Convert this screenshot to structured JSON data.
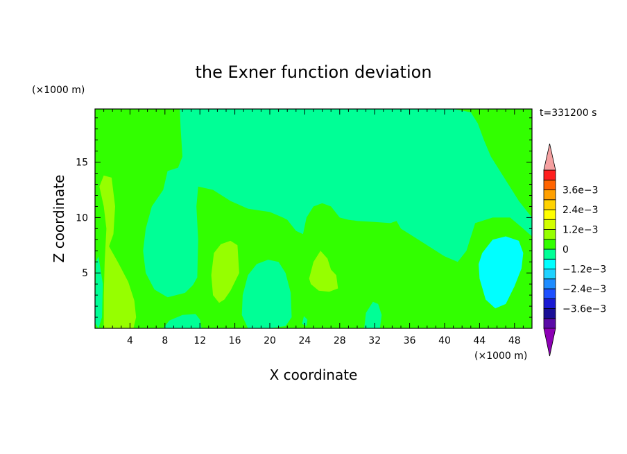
{
  "chart_data": {
    "type": "heatmap",
    "title": "the Exner function deviation",
    "xlabel": "X coordinate",
    "ylabel": "Z coordinate",
    "x_unit": "(×1000 m)",
    "y_unit": "(×1000 m)",
    "time_label": "t=331200 s",
    "xlim": [
      0,
      50
    ],
    "ylim": [
      0,
      19.8
    ],
    "x_ticks": [
      4,
      8,
      12,
      16,
      20,
      24,
      28,
      32,
      36,
      40,
      44,
      48
    ],
    "x_tick_labels": [
      "4",
      "8",
      "12",
      "16",
      "20",
      "24",
      "28",
      "32",
      "36",
      "40",
      "44",
      "48"
    ],
    "y_ticks": [
      5,
      10,
      15
    ],
    "y_tick_labels": [
      "5",
      "10",
      "15"
    ],
    "colorbar": {
      "levels": [
        -0.0042,
        -0.0036,
        -0.003,
        -0.0024,
        -0.0018,
        -0.0012,
        -0.0006,
        0,
        0.0006,
        0.0012,
        0.0018,
        0.0024,
        0.003,
        0.0036,
        0.0042
      ],
      "tick_labels": [
        "3.6e−3",
        "2.4e−3",
        "1.2e−3",
        "0",
        "−1.2e−3",
        "−2.4e−3",
        "−3.6e−3"
      ],
      "colors_bottom_to_top": [
        "#5a0aa6",
        "#1a0f96",
        "#1a1ad2",
        "#1e50ff",
        "#1e8cff",
        "#1ed2ff",
        "#00ffff",
        "#00ff96",
        "#32ff00",
        "#96ff00",
        "#d2ff00",
        "#ffff00",
        "#ffd200",
        "#ffa000",
        "#ff6400",
        "#ff1e1e"
      ],
      "under_color": "#8c00b4",
      "over_color": "#f5a0a0"
    },
    "regions": [
      {
        "level": "0 to 6e-4",
        "color": "#32ff00",
        "polygon": [
          [
            0,
            0
          ],
          [
            50,
            0
          ],
          [
            50,
            19.8
          ],
          [
            0,
            19.8
          ]
        ]
      },
      {
        "level": "-6e-4 to 0",
        "color": "#00ff96",
        "polygon": [
          [
            9.7,
            19.8
          ],
          [
            9.8,
            18
          ],
          [
            10,
            15.5
          ],
          [
            9.5,
            14.5
          ],
          [
            8.3,
            14.2
          ],
          [
            7.8,
            12.5
          ],
          [
            6.5,
            11
          ],
          [
            5.8,
            9
          ],
          [
            5.5,
            7
          ],
          [
            5.8,
            5
          ],
          [
            6.8,
            3.5
          ],
          [
            8.3,
            2.8
          ],
          [
            10.3,
            3.2
          ],
          [
            11.2,
            3.9
          ],
          [
            11.7,
            4.6
          ],
          [
            11.8,
            8
          ],
          [
            11.6,
            11
          ],
          [
            11.8,
            12.8
          ],
          [
            13.5,
            12.5
          ],
          [
            14.5,
            12
          ],
          [
            15.5,
            11.5
          ],
          [
            17.5,
            10.8
          ],
          [
            20,
            10.5
          ],
          [
            21.5,
            10
          ],
          [
            22,
            9.8
          ],
          [
            23,
            8.8
          ],
          [
            23.8,
            8.5
          ],
          [
            24.2,
            10
          ],
          [
            25,
            11
          ],
          [
            26,
            11.3
          ],
          [
            27,
            11
          ],
          [
            28,
            10
          ],
          [
            29,
            9.8
          ],
          [
            30,
            9.7
          ],
          [
            32,
            9.6
          ],
          [
            33.8,
            9.5
          ],
          [
            34.5,
            9.7
          ],
          [
            35,
            9
          ],
          [
            36,
            8.5
          ],
          [
            37,
            8
          ],
          [
            38,
            7.5
          ],
          [
            39,
            7
          ],
          [
            40,
            6.5
          ],
          [
            41.5,
            6
          ],
          [
            42.5,
            7
          ],
          [
            43.5,
            9.5
          ],
          [
            45.5,
            10
          ],
          [
            47.5,
            10
          ],
          [
            49,
            9
          ],
          [
            50,
            8.3
          ],
          [
            50,
            10
          ],
          [
            48.5,
            11.5
          ],
          [
            46.5,
            14
          ],
          [
            45.3,
            15.5
          ],
          [
            44.5,
            17
          ],
          [
            43.8,
            18.5
          ],
          [
            43,
            19.5
          ],
          [
            41,
            19.8
          ]
        ]
      },
      {
        "level": "-6e-4 to 0",
        "color": "#00ff96",
        "polygon": [
          [
            16.9,
            3
          ],
          [
            17.5,
            4.8
          ],
          [
            18.5,
            5.8
          ],
          [
            19.8,
            6.2
          ],
          [
            21,
            6
          ],
          [
            21.8,
            5
          ],
          [
            22.4,
            3.2
          ],
          [
            22.5,
            1
          ],
          [
            21.8,
            0.2
          ],
          [
            20,
            0
          ],
          [
            17.5,
            0
          ],
          [
            16.8,
            1.2
          ]
        ]
      },
      {
        "level": "-6e-4 to 0",
        "color": "#00ff96",
        "polygon": [
          [
            7.8,
            0
          ],
          [
            8.5,
            0.7
          ],
          [
            10,
            1.2
          ],
          [
            11.5,
            1.3
          ],
          [
            12,
            0.8
          ],
          [
            12.2,
            0
          ]
        ]
      },
      {
        "level": "-6e-4 to 0",
        "color": "#00ff96",
        "polygon": [
          [
            30.8,
            0
          ],
          [
            31,
            1.4
          ],
          [
            31.8,
            2.4
          ],
          [
            32.4,
            2.2
          ],
          [
            32.8,
            1.2
          ],
          [
            32.6,
            0
          ]
        ]
      },
      {
        "level": "-6e-4 to 0",
        "color": "#00ff96",
        "polygon": [
          [
            23.7,
            0.4
          ],
          [
            23.9,
            1.1
          ],
          [
            24.3,
            0.8
          ],
          [
            24.2,
            0.2
          ]
        ]
      },
      {
        "level": "-6e-4 to 0",
        "color": "#00ff96",
        "polygon": [
          [
            0,
            0.5
          ],
          [
            0.1,
            6
          ],
          [
            0.4,
            6.5
          ],
          [
            0.9,
            4
          ],
          [
            0.8,
            1
          ],
          [
            0.4,
            0
          ]
        ]
      },
      {
        "level": "-1.2e-3 to -6e-4",
        "color": "#00ffff",
        "polygon": [
          [
            44,
            4.5
          ],
          [
            44.7,
            2.6
          ],
          [
            45.8,
            1.8
          ],
          [
            47,
            2.2
          ],
          [
            48,
            3.8
          ],
          [
            48.8,
            5.4
          ],
          [
            49,
            6.8
          ],
          [
            48.5,
            7.9
          ],
          [
            47,
            8.3
          ],
          [
            45.5,
            8
          ],
          [
            44.3,
            6.8
          ],
          [
            43.9,
            5.8
          ]
        ]
      },
      {
        "level": "6e-4 to 1.2e-3",
        "color": "#96ff00",
        "polygon": [
          [
            0.5,
            12.8
          ],
          [
            1,
            13.8
          ],
          [
            1.9,
            13.6
          ],
          [
            2.3,
            11
          ],
          [
            2.1,
            8.5
          ],
          [
            1.6,
            7.4
          ],
          [
            2.6,
            6
          ],
          [
            3.8,
            4.2
          ],
          [
            4.5,
            2.5
          ],
          [
            4.7,
            1
          ],
          [
            4.4,
            0
          ],
          [
            1,
            0
          ],
          [
            1,
            3
          ],
          [
            1.1,
            6
          ],
          [
            1.3,
            9
          ],
          [
            1,
            11
          ]
        ]
      },
      {
        "level": "6e-4 to 1.2e-3",
        "color": "#96ff00",
        "polygon": [
          [
            13.3,
            4.8
          ],
          [
            13.6,
            6.8
          ],
          [
            14.4,
            7.6
          ],
          [
            15.5,
            7.9
          ],
          [
            16.3,
            7.5
          ],
          [
            16.5,
            5
          ],
          [
            15.5,
            3.4
          ],
          [
            14.8,
            2.6
          ],
          [
            14.2,
            2.3
          ],
          [
            13.5,
            3
          ]
        ]
      },
      {
        "level": "6e-4 to 1.2e-3",
        "color": "#96ff00",
        "polygon": [
          [
            24.5,
            4.5
          ],
          [
            25,
            6
          ],
          [
            25.8,
            7
          ],
          [
            26.6,
            6.3
          ],
          [
            27,
            5.3
          ],
          [
            27.6,
            4.8
          ],
          [
            27.8,
            3.6
          ],
          [
            26.8,
            3.3
          ],
          [
            25.6,
            3.4
          ],
          [
            24.7,
            4
          ]
        ]
      }
    ]
  }
}
